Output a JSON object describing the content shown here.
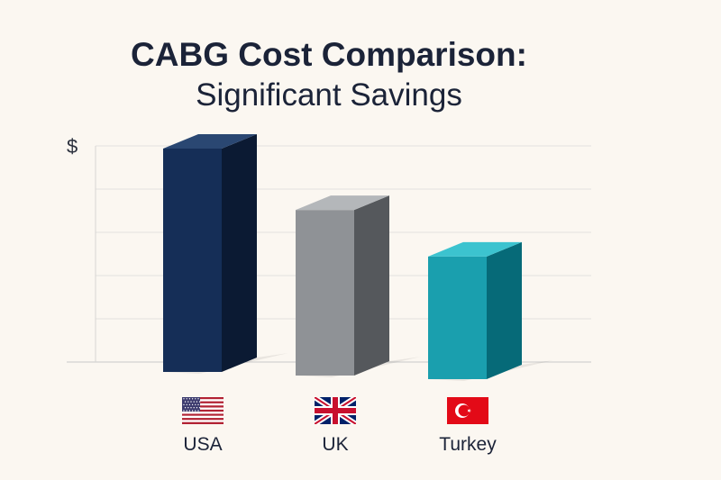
{
  "chart": {
    "title": "CABG Cost Comparison:",
    "subtitle": "Significant Savings",
    "y_label": "$"
  },
  "chart_data": {
    "type": "bar",
    "title": "CABG Cost Comparison:",
    "subtitle": "Significant Savings",
    "xlabel": "",
    "ylabel": "$",
    "categories": [
      "USA",
      "UK",
      "Turkey"
    ],
    "values": [
      100,
      71,
      49
    ],
    "value_scale": "relative (no numeric axis shown)",
    "ylim": [
      0,
      100
    ],
    "grid": true,
    "style": "3d-bars",
    "colors": {
      "USA": {
        "front": "#152e57",
        "side": "#0b1a33",
        "top": "#2a4772"
      },
      "UK": {
        "front": "#8f9296",
        "side": "#55585c",
        "top": "#b4b7ba"
      },
      "Turkey": {
        "front": "#1a9fae",
        "side": "#066a78",
        "top": "#3cc3cf"
      }
    },
    "flags": [
      "us-flag-icon",
      "uk-flag-icon",
      "turkey-flag-icon"
    ]
  }
}
